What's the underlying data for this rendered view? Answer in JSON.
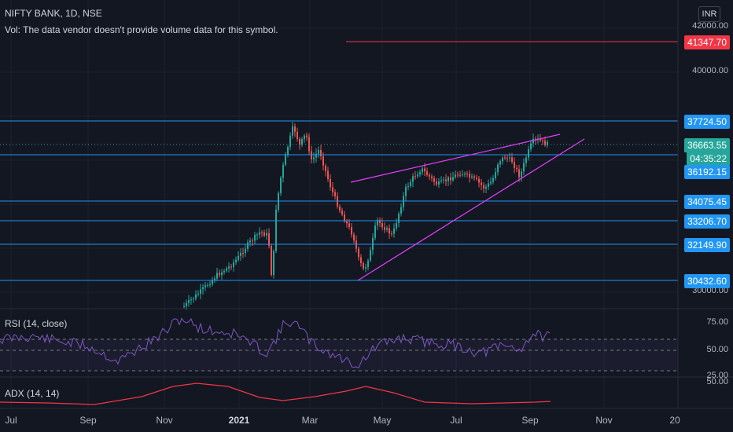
{
  "header": {
    "symbol": "NIFTY BANK, 1D, NSE",
    "volume_note": "Vol: The data vendor doesn't provide volume data for this symbol."
  },
  "currency": "INR",
  "price_scale_ticks": [
    "42000.00",
    "40000.00",
    "30000.00"
  ],
  "price_labels": {
    "red_level": "41347.70",
    "current_price": "36663.55",
    "countdown": "04:35:22",
    "levels": [
      "37724.50",
      "36192.15",
      "34075.45",
      "33206.70",
      "32149.90",
      "30432.60"
    ]
  },
  "rsi": {
    "label": "RSI (14, close)",
    "ticks": [
      "75.00",
      "50.00",
      "25.00"
    ]
  },
  "adx": {
    "label": "ADX (14, 14)",
    "tick": "50.00"
  },
  "time_axis": [
    "Jul",
    "Sep",
    "Nov",
    "2021",
    "Mar",
    "May",
    "Jul",
    "Sep",
    "Nov",
    "20"
  ],
  "colors": {
    "background": "#131722",
    "level_line": "#2196f3",
    "red_line": "#f23645",
    "wedge": "#e040fb",
    "rsi": "#7e57c2",
    "adx": "#f23645",
    "candle_up": "#26a69a",
    "candle_down": "#ef5350"
  }
}
